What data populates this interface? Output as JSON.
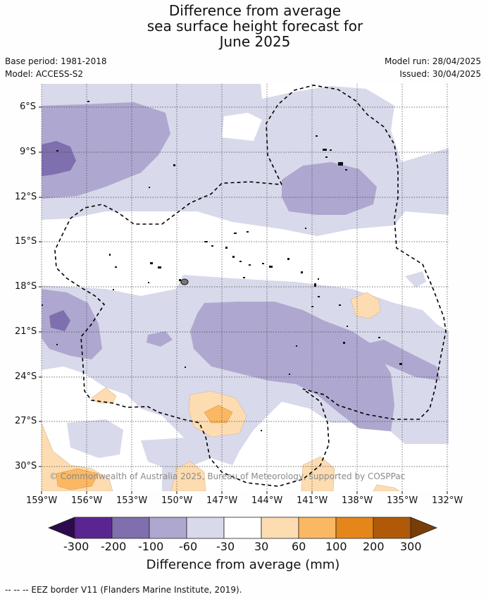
{
  "title": {
    "line1": "Difference from average",
    "line2": "sea surface height forecast for",
    "line3": "June 2025"
  },
  "meta": {
    "base_period": "Base period: 1981-2018",
    "model": "Model: ACCESS-S2",
    "model_run": "Model run: 28/04/2025",
    "issued": "Issued: 30/04/2025"
  },
  "map": {
    "lat_labels": [
      "6°S",
      "9°S",
      "12°S",
      "15°S",
      "18°S",
      "21°S",
      "24°S",
      "27°S",
      "30°S"
    ],
    "lon_labels": [
      "159°W",
      "156°W",
      "153°W",
      "150°W",
      "147°W",
      "144°W",
      "141°W",
      "138°W",
      "135°W",
      "132°W"
    ],
    "copyright": "© Commonwealth of Australia 2025, Bureau of Meteorology, supported by COSPPac",
    "eez_line_style": "dashed",
    "colors": {
      "m300": "#2d0a4e",
      "m200": "#5a2590",
      "m100": "#7f6fae",
      "m60": "#aea8d0",
      "m30": "#d8d9ea",
      "zero": "#ffffff",
      "p30": "#fddcb2",
      "p60": "#fbb863",
      "p100": "#e5861a",
      "p200": "#b05a09",
      "p300": "#7a3d08"
    }
  },
  "colorbar": {
    "labels": [
      "-300",
      "-200",
      "-100",
      "-60",
      "-30",
      "30",
      "60",
      "100",
      "200",
      "300"
    ],
    "title": "Difference from average (mm)"
  },
  "footnote": "--  --  -- EEZ border V11 (Flanders Marine Institute, 2019)."
}
